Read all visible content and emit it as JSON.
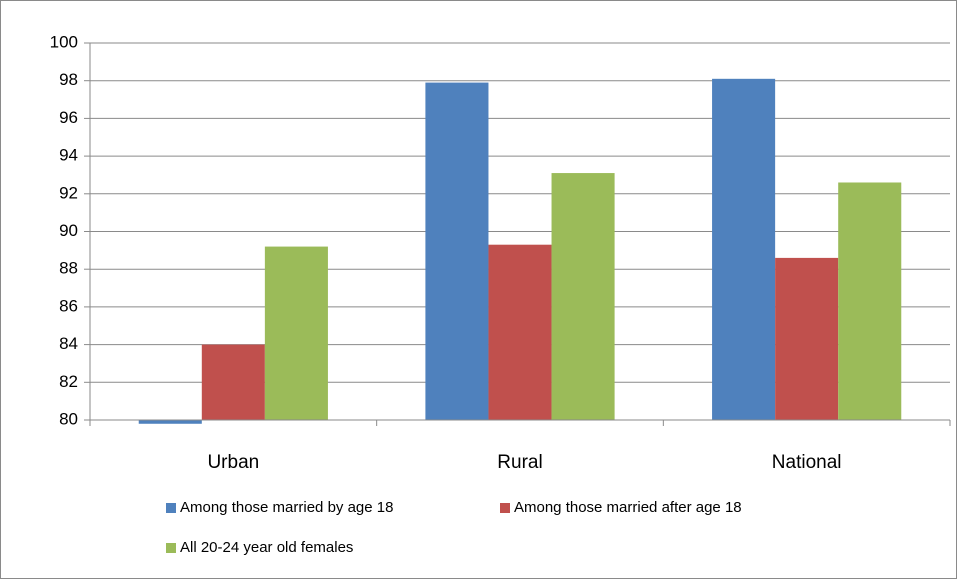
{
  "chart_data": {
    "type": "bar",
    "categories": [
      "Urban",
      "Rural",
      "National"
    ],
    "series": [
      {
        "name": "Among those married by age 18",
        "color": "#4f81bd",
        "values": [
          79.8,
          97.9,
          98.1
        ]
      },
      {
        "name": "Among those married after age 18",
        "color": "#c0504d",
        "values": [
          84,
          89.3,
          88.6
        ]
      },
      {
        "name": "All 20-24 year old females",
        "color": "#9bbb59",
        "values": [
          89.2,
          93.1,
          92.6
        ]
      }
    ],
    "ylim": [
      80,
      100
    ],
    "yticks": [
      80,
      82,
      84,
      86,
      88,
      90,
      92,
      94,
      96,
      98,
      100
    ],
    "grid": true
  }
}
